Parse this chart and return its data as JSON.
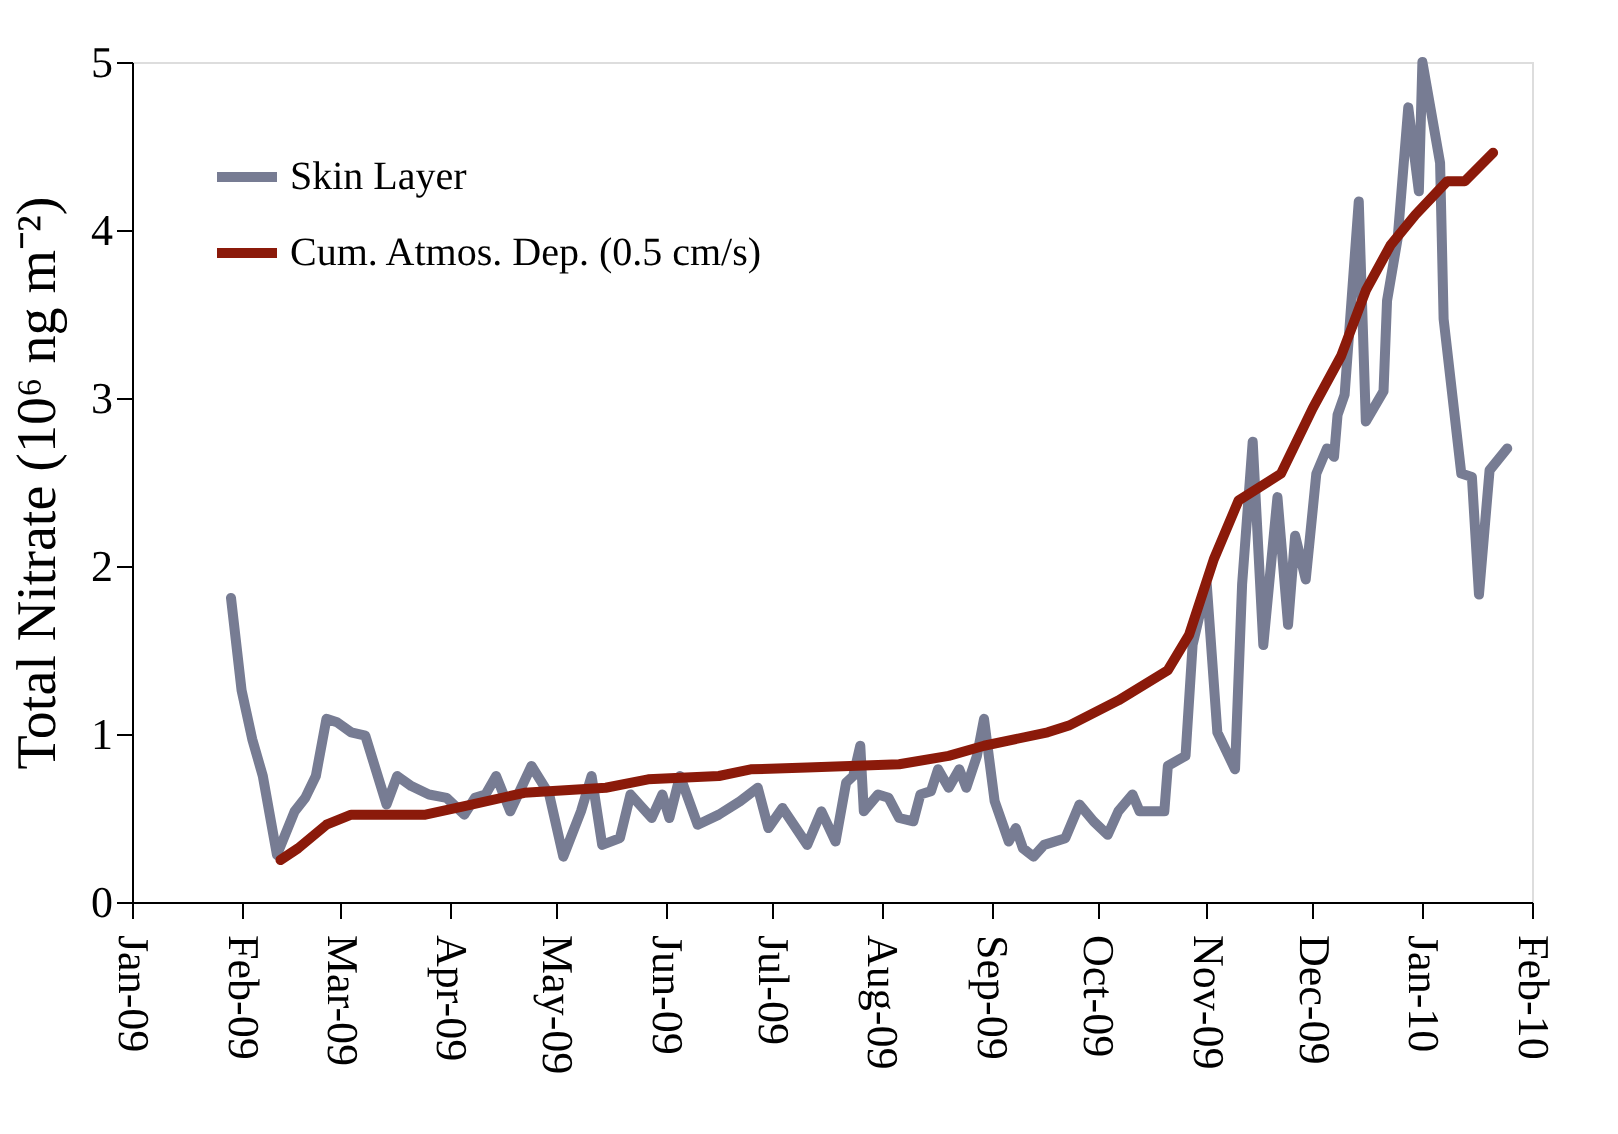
{
  "chart_data": {
    "type": "line",
    "ylabel": "Total Nitrate (10⁶ ng m⁻²)",
    "xlim": [
      "2009-01",
      "2010-02"
    ],
    "xticks": [
      {
        "value": "2009-01",
        "label": "Jan-09"
      },
      {
        "value": "2009-02",
        "label": "Feb-09"
      },
      {
        "value": "2009-03",
        "label": "Mar-09"
      },
      {
        "value": "2009-04",
        "label": "Apr-09"
      },
      {
        "value": "2009-05",
        "label": "May-09"
      },
      {
        "value": "2009-06",
        "label": "Jun-09"
      },
      {
        "value": "2009-07",
        "label": "Jul-09"
      },
      {
        "value": "2009-08",
        "label": "Aug-09"
      },
      {
        "value": "2009-09",
        "label": "Sep-09"
      },
      {
        "value": "2009-10",
        "label": "Oct-09"
      },
      {
        "value": "2009-11",
        "label": "Nov-09"
      },
      {
        "value": "2009-12",
        "label": "Dec-09"
      },
      {
        "value": "2010-01",
        "label": "Jan-10"
      },
      {
        "value": "2010-02",
        "label": "Feb-10"
      }
    ],
    "ylim": [
      0,
      5
    ],
    "yticks": [
      0,
      1,
      2,
      3,
      4,
      5
    ],
    "grid": false,
    "legend": "top left",
    "marker": "none",
    "line_style": "solid",
    "series": [
      {
        "name": "Skin Layer",
        "color": "#777c93",
        "x": [
          "2009-01-29",
          "2009-02-01",
          "2009-02-04",
          "2009-02-07",
          "2009-02-11",
          "2009-02-16",
          "2009-02-19",
          "2009-02-22",
          "2009-02-25",
          "2009-02-28",
          "2009-03-04",
          "2009-03-08",
          "2009-03-14",
          "2009-03-17",
          "2009-03-21",
          "2009-03-26",
          "2009-03-31",
          "2009-04-05",
          "2009-04-08",
          "2009-04-11",
          "2009-04-14",
          "2009-04-18",
          "2009-04-24",
          "2009-04-29",
          "2009-05-03",
          "2009-05-08",
          "2009-05-11",
          "2009-05-14",
          "2009-05-19",
          "2009-05-22",
          "2009-05-28",
          "2009-05-31",
          "2009-06-02",
          "2009-06-05",
          "2009-06-10",
          "2009-06-16",
          "2009-06-22",
          "2009-06-27",
          "2009-06-30",
          "2009-07-04",
          "2009-07-11",
          "2009-07-15",
          "2009-07-19",
          "2009-07-22",
          "2009-07-24",
          "2009-07-26",
          "2009-07-27",
          "2009-07-31",
          "2009-08-03",
          "2009-08-06",
          "2009-08-10",
          "2009-08-12",
          "2009-08-15",
          "2009-08-17",
          "2009-08-20",
          "2009-08-23",
          "2009-08-25",
          "2009-08-28",
          "2009-08-30",
          "2009-09-02",
          "2009-09-06",
          "2009-09-08",
          "2009-09-10",
          "2009-09-13",
          "2009-09-16",
          "2009-09-22",
          "2009-09-26",
          "2009-09-30",
          "2009-10-04",
          "2009-10-07",
          "2009-10-11",
          "2009-10-13",
          "2009-10-20",
          "2009-10-21",
          "2009-10-26",
          "2009-10-28",
          "2009-11-01",
          "2009-11-04",
          "2009-11-09",
          "2009-11-11",
          "2009-11-14",
          "2009-11-17",
          "2009-11-21",
          "2009-11-24",
          "2009-11-26",
          "2009-11-29",
          "2009-12-02",
          "2009-12-05",
          "2009-12-07",
          "2009-12-08",
          "2009-12-10",
          "2009-12-14",
          "2009-12-16",
          "2009-12-21",
          "2009-12-22",
          "2009-12-25",
          "2009-12-28",
          "2009-12-31",
          "2010-01-01",
          "2010-01-06",
          "2010-01-07",
          "2010-01-12",
          "2010-01-15",
          "2010-01-17",
          "2010-01-20",
          "2010-01-25"
        ],
        "values": [
          1.81,
          1.26,
          0.97,
          0.75,
          0.28,
          0.54,
          0.62,
          0.75,
          1.09,
          1.07,
          1.01,
          0.99,
          0.58,
          0.75,
          0.69,
          0.64,
          0.62,
          0.52,
          0.62,
          0.64,
          0.75,
          0.54,
          0.81,
          0.64,
          0.27,
          0.54,
          0.75,
          0.34,
          0.38,
          0.64,
          0.5,
          0.64,
          0.5,
          0.75,
          0.46,
          0.52,
          0.6,
          0.68,
          0.44,
          0.56,
          0.34,
          0.54,
          0.36,
          0.71,
          0.75,
          0.93,
          0.54,
          0.64,
          0.62,
          0.5,
          0.48,
          0.64,
          0.66,
          0.79,
          0.68,
          0.79,
          0.68,
          0.87,
          1.09,
          0.6,
          0.36,
          0.44,
          0.32,
          0.27,
          0.34,
          0.38,
          0.58,
          0.48,
          0.4,
          0.54,
          0.64,
          0.54,
          0.54,
          0.81,
          0.87,
          1.53,
          1.89,
          1.01,
          0.79,
          1.89,
          2.74,
          1.53,
          2.41,
          1.65,
          2.18,
          1.92,
          2.55,
          2.7,
          2.65,
          2.9,
          3.02,
          4.17,
          2.86,
          3.04,
          3.58,
          3.95,
          4.73,
          4.23,
          5.0,
          4.4,
          3.47,
          2.55,
          2.53,
          1.83,
          2.57,
          2.7
        ]
      },
      {
        "name": "Cum. Atmos. Dep. (0.5 cm/s)",
        "color": "#8b1a0a",
        "x": [
          "2009-02-12",
          "2009-02-17",
          "2009-02-25",
          "2009-03-04",
          "2009-03-25",
          "2009-04-07",
          "2009-04-22",
          "2009-05-15",
          "2009-05-27",
          "2009-06-16",
          "2009-06-25",
          "2009-07-11",
          "2009-08-06",
          "2009-08-20",
          "2009-08-30",
          "2009-09-17",
          "2009-09-23",
          "2009-10-07",
          "2009-10-21",
          "2009-10-27",
          "2009-11-03",
          "2009-11-10",
          "2009-11-22",
          "2009-12-01",
          "2009-12-09",
          "2009-12-16",
          "2009-12-23",
          "2009-12-30",
          "2010-01-08",
          "2010-01-13",
          "2010-01-21"
        ],
        "values": [
          0.25,
          0.32,
          0.46,
          0.52,
          0.52,
          0.58,
          0.65,
          0.68,
          0.73,
          0.75,
          0.79,
          0.8,
          0.82,
          0.87,
          0.93,
          1.01,
          1.05,
          1.2,
          1.38,
          1.59,
          2.04,
          2.39,
          2.55,
          2.94,
          3.25,
          3.64,
          3.91,
          4.09,
          4.29,
          4.29,
          4.46
        ]
      }
    ]
  }
}
